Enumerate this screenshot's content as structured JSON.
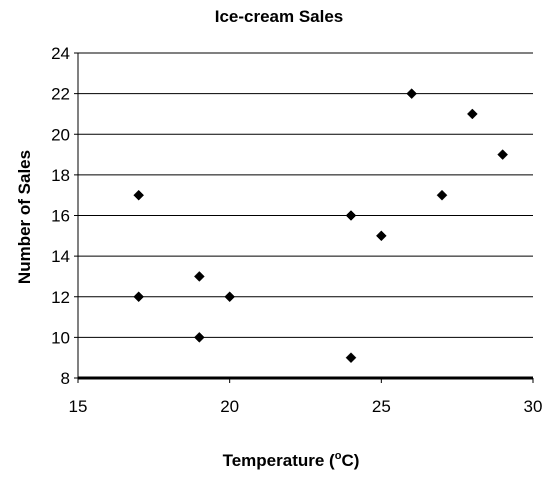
{
  "chart_data": {
    "type": "scatter",
    "title": "Ice-cream Sales",
    "xlabel": "Temperature (",
    "xlabel_superscript": "o",
    "xlabel_suffix": "C)",
    "ylabel": "Number of Sales",
    "xlim": [
      15,
      30
    ],
    "ylim": [
      8,
      24
    ],
    "xticks": [
      15,
      20,
      25,
      30
    ],
    "yticks": [
      8,
      10,
      12,
      14,
      16,
      18,
      20,
      22,
      24
    ],
    "grid": "horizontal",
    "legend": "none",
    "marker": "diamond",
    "points": [
      {
        "x": 17,
        "y": 17
      },
      {
        "x": 17,
        "y": 12
      },
      {
        "x": 19,
        "y": 13
      },
      {
        "x": 19,
        "y": 10
      },
      {
        "x": 20,
        "y": 12
      },
      {
        "x": 24,
        "y": 16
      },
      {
        "x": 24,
        "y": 9
      },
      {
        "x": 25,
        "y": 15
      },
      {
        "x": 26,
        "y": 22
      },
      {
        "x": 27,
        "y": 17
      },
      {
        "x": 28,
        "y": 21
      },
      {
        "x": 29,
        "y": 19
      }
    ],
    "colors": {
      "marker": "#000000",
      "grid": "#000000",
      "axis": "#000000"
    }
  }
}
